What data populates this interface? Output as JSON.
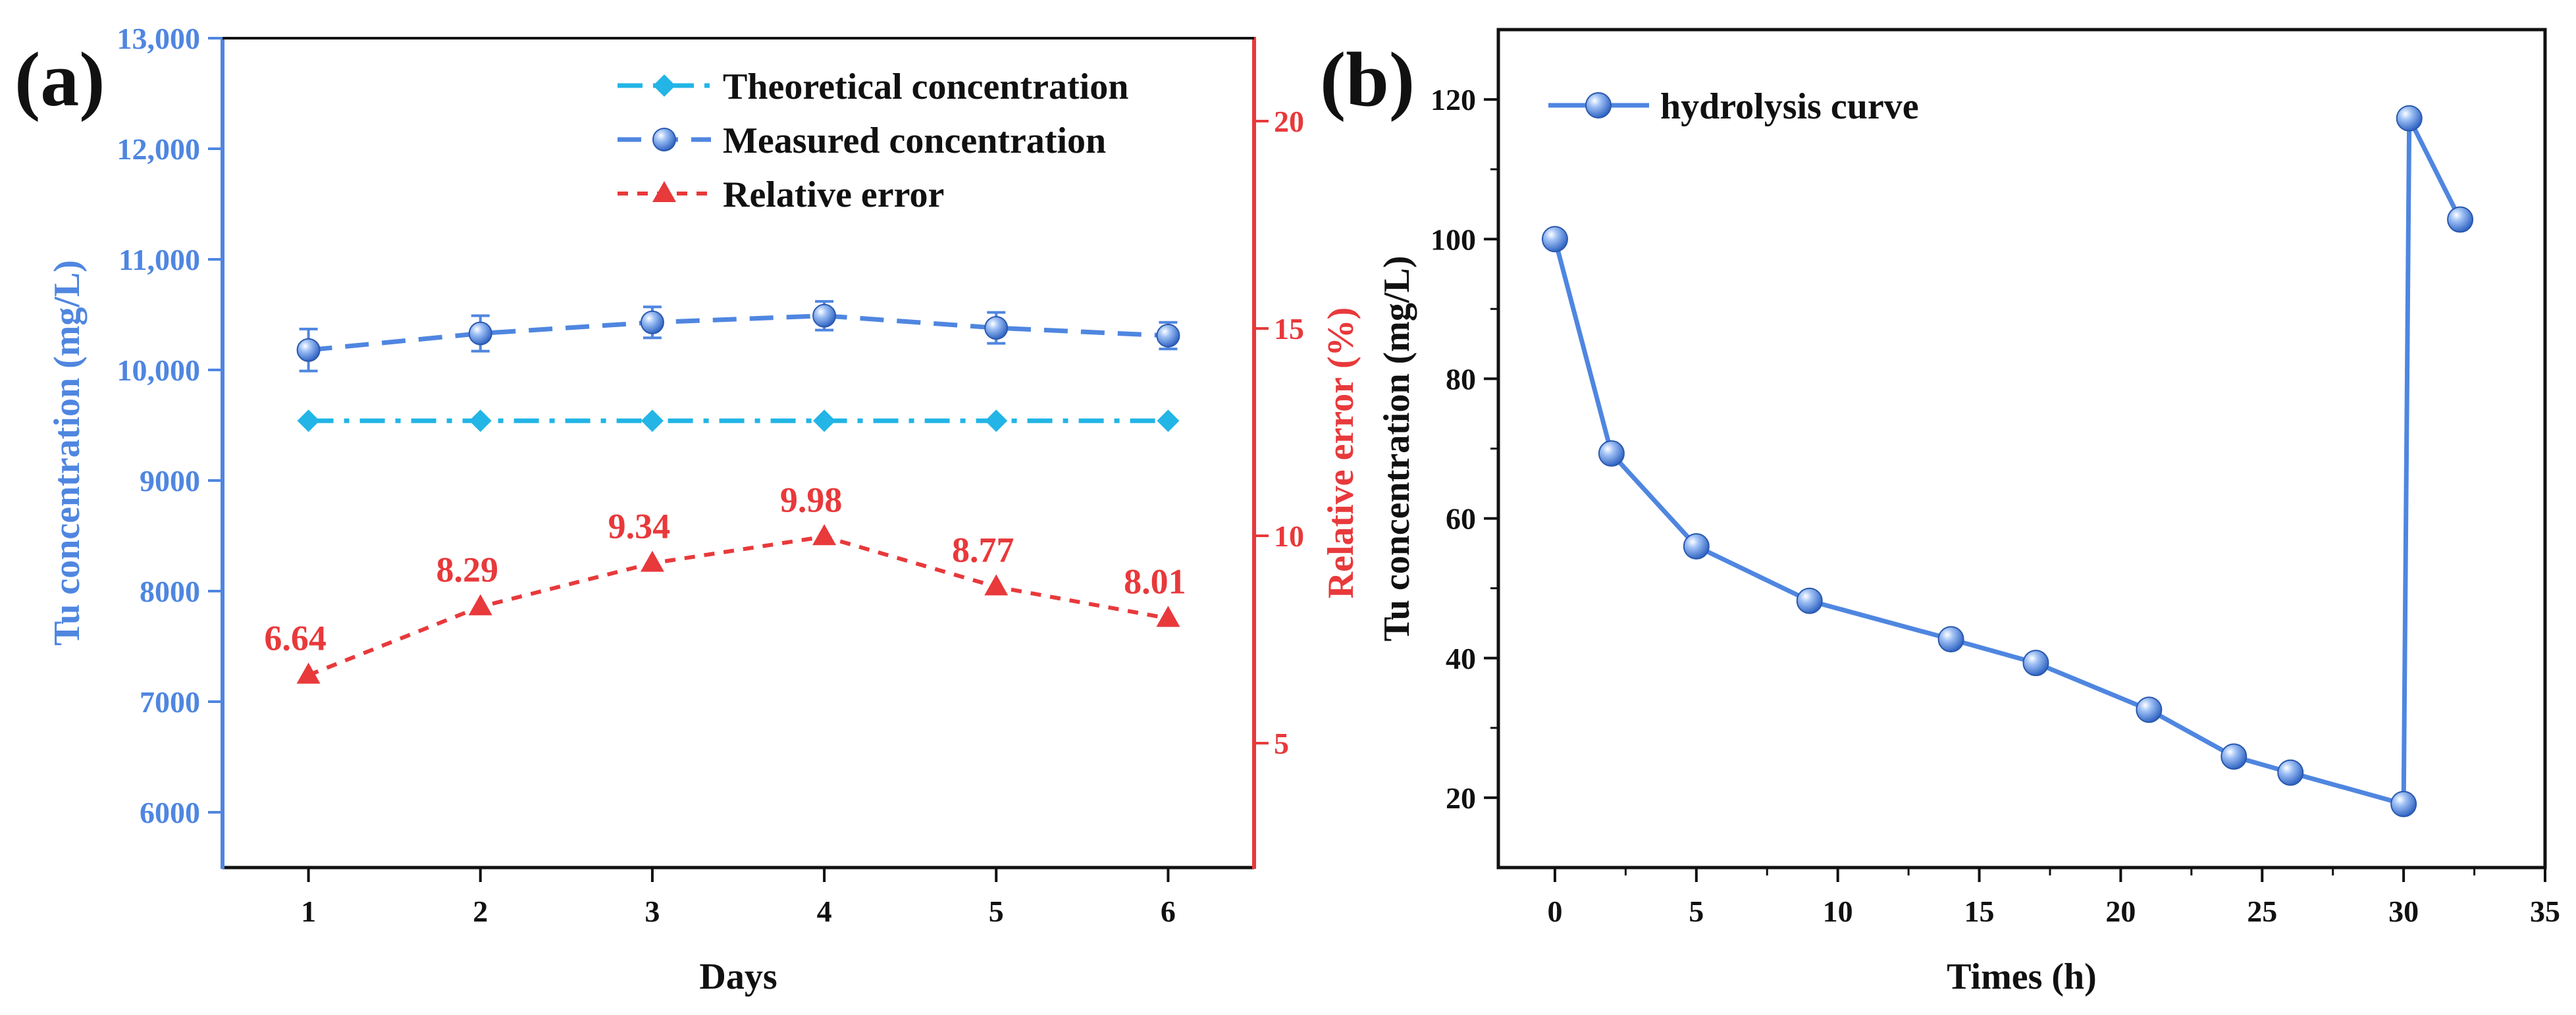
{
  "panel_labels": {
    "a": "(a)",
    "b": "(b)"
  },
  "colors": {
    "theoretical": "#22b5e6",
    "measured": "#4f86e0",
    "error": "#e8393b",
    "left_axis": "#4f86e0",
    "right_axis": "#e8393b",
    "hydrolysis": "#4f86e0",
    "black": "#111111"
  },
  "chart_data": [
    {
      "id": "panel-a",
      "type": "line",
      "xlabel": "Days",
      "ylabel": "Tu concentration (mg/L)",
      "y2label": "Relative error (%)",
      "x": [
        1,
        2,
        3,
        4,
        5,
        6
      ],
      "xlim": [
        0.5,
        6.5
      ],
      "ylim": [
        5500,
        13000
      ],
      "y2lim": [
        2,
        22
      ],
      "xticks": [
        "1",
        "2",
        "3",
        "4",
        "5",
        "6"
      ],
      "yticks": [
        {
          "value": 6000,
          "label": "6000"
        },
        {
          "value": 7000,
          "label": "7000"
        },
        {
          "value": 8000,
          "label": "8000"
        },
        {
          "value": 9000,
          "label": "9000"
        },
        {
          "value": 10000,
          "label": "10,000"
        },
        {
          "value": 11000,
          "label": "11,000"
        },
        {
          "value": 12000,
          "label": "12,000"
        },
        {
          "value": 13000,
          "label": "13,000"
        }
      ],
      "y2ticks": [
        {
          "value": 5,
          "label": "5"
        },
        {
          "value": 10,
          "label": "10"
        },
        {
          "value": 15,
          "label": "15"
        },
        {
          "value": 20,
          "label": "20"
        }
      ],
      "series": [
        {
          "name": "Theoretical concentration",
          "axis": "left",
          "values": [
            9540,
            9540,
            9540,
            9540,
            9540,
            9540
          ]
        },
        {
          "name": "Measured concentration",
          "axis": "left",
          "values": [
            10180,
            10330,
            10430,
            10490,
            10380,
            10310
          ],
          "errors": [
            190,
            160,
            140,
            130,
            140,
            120
          ]
        },
        {
          "name": "Relative error",
          "axis": "right",
          "values": [
            6.64,
            8.29,
            9.34,
            9.98,
            8.77,
            8.01
          ],
          "data_labels": [
            "6.64",
            "8.29",
            "9.34",
            "9.98",
            "8.77",
            "8.01"
          ]
        }
      ],
      "legend": "top-right"
    },
    {
      "id": "panel-b",
      "type": "line",
      "xlabel": "Times (h)",
      "ylabel": "Tu concentration (mg/L)",
      "xlim": [
        -2,
        35
      ],
      "ylim": [
        10,
        130
      ],
      "xticks": [
        {
          "value": 0,
          "label": "0"
        },
        {
          "value": 5,
          "label": "5"
        },
        {
          "value": 10,
          "label": "10"
        },
        {
          "value": 15,
          "label": "15"
        },
        {
          "value": 20,
          "label": "20"
        },
        {
          "value": 25,
          "label": "25"
        },
        {
          "value": 30,
          "label": "30"
        },
        {
          "value": 35,
          "label": "35"
        }
      ],
      "yticks": [
        {
          "value": 20,
          "label": "20"
        },
        {
          "value": 40,
          "label": "40"
        },
        {
          "value": 60,
          "label": "60"
        },
        {
          "value": 80,
          "label": "80"
        },
        {
          "value": 100,
          "label": "100"
        },
        {
          "value": 120,
          "label": "120"
        }
      ],
      "series": [
        {
          "name": "hydrolysis curve",
          "x": [
            0,
            2,
            5,
            9,
            14,
            17,
            21,
            24,
            26,
            30,
            30.2,
            32
          ],
          "values": [
            100,
            69.3,
            56,
            48.2,
            42.7,
            39.3,
            32.6,
            25.9,
            23.6,
            19.1,
            117.3,
            102.8
          ]
        }
      ],
      "legend": "top-left"
    }
  ]
}
